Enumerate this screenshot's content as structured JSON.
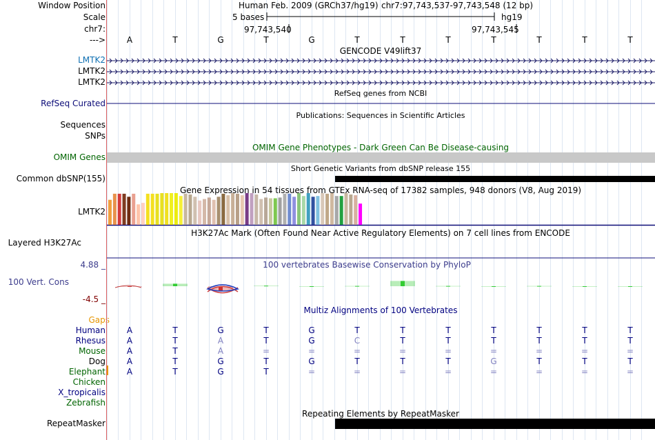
{
  "labels": {
    "window_position": "Window Position",
    "scale": "Scale",
    "chrom": "chr7:",
    "arrow": "--->",
    "gencode_1": "LMTK2",
    "gencode_2": "LMTK2",
    "gencode_3": "LMTK2",
    "refseq": "RefSeq Curated",
    "sequences": "Sequences",
    "snps": "SNPs",
    "omim": "OMIM Genes",
    "dbsnp": "Common dbSNP(155)",
    "gtex": "LMTK2",
    "h3k27ac": "Layered H3K27Ac",
    "phylop_max": "4.88 _",
    "cons": "100 Vert. Cons",
    "phylop_min": "-4.5 _",
    "gaps": "Gaps",
    "repeatmasker": "RepeatMasker"
  },
  "ruler": {
    "assembly": "Human Feb. 2009 (GRCh37/hg19)",
    "position": "chr7:97,743,537-97,743,548 (12 bp)",
    "scale_bases": "5 bases",
    "scale_db": "hg19",
    "coord_1": "97,743,540",
    "coord_2": "97,743,545"
  },
  "dna": [
    "A",
    "T",
    "G",
    "T",
    "G",
    "T",
    "T",
    "T",
    "T",
    "T",
    "T",
    "T"
  ],
  "titles": {
    "gencode": "GENCODE V49lift37",
    "refseq": "RefSeq genes from NCBI",
    "pubs": "Publications: Sequences in Scientific Articles",
    "omim": "OMIM Gene Phenotypes - Dark Green Can Be Disease-causing",
    "dbsnp": "Short Genetic Variants from dbSNP release 155",
    "gtex": "Gene Expression in 54 tissues from GTEx RNA-seq of 17382 samples, 948 donors (V8, Aug 2019)",
    "h3k27ac": "H3K27Ac Mark (Often Found Near Active Regulatory Elements) on 7 cell lines from ENCODE",
    "phylop": "100 vertebrates Basewise Conservation by PhyloP",
    "multiz": "Multiz Alignments of 100 Vertebrates",
    "repeatmasker": "Repeating Elements by RepeatMasker"
  },
  "species": [
    {
      "name": "Human",
      "color": "#000080",
      "bases": [
        "A",
        "T",
        "G",
        "T",
        "G",
        "T",
        "T",
        "T",
        "T",
        "T",
        "T",
        "T"
      ]
    },
    {
      "name": "Rhesus",
      "color": "#000080",
      "bases": [
        "A",
        "T",
        "A",
        "T",
        "G",
        "C",
        "T",
        "T",
        "T",
        "T",
        "T",
        "T"
      ]
    },
    {
      "name": "Mouse",
      "color": "#006400",
      "bases": [
        "A",
        "T",
        "A",
        "=",
        "=",
        "=",
        "=",
        "=",
        "=",
        "=",
        "=",
        "="
      ]
    },
    {
      "name": "Dog",
      "color": "#000000",
      "bases": [
        "A",
        "T",
        "G",
        "T",
        "G",
        "T",
        "T",
        "T",
        "G",
        "T",
        "T",
        "T"
      ]
    },
    {
      "name": "Elephant",
      "color": "#006400",
      "bases": [
        "A",
        "T",
        "G",
        "T",
        "=",
        "=",
        "=",
        "=",
        "=",
        "=",
        "=",
        "="
      ]
    },
    {
      "name": "Chicken",
      "color": "#006400",
      "bases": []
    },
    {
      "name": "X_tropicalis",
      "color": "#000080",
      "bases": []
    },
    {
      "name": "Zebrafish",
      "color": "#006400",
      "bases": []
    }
  ],
  "align_colors": {
    "Human": [
      "n",
      "n",
      "n",
      "n",
      "n",
      "n",
      "n",
      "n",
      "n",
      "n",
      "n",
      "n"
    ],
    "Rhesus": [
      "n",
      "n",
      "l",
      "n",
      "n",
      "l",
      "n",
      "n",
      "n",
      "n",
      "n",
      "n"
    ],
    "Mouse": [
      "n",
      "n",
      "l",
      "l",
      "l",
      "l",
      "l",
      "l",
      "l",
      "l",
      "l",
      "l"
    ],
    "Dog": [
      "n",
      "n",
      "n",
      "n",
      "n",
      "n",
      "n",
      "n",
      "l",
      "n",
      "n",
      "n"
    ],
    "Elephant": [
      "n",
      "n",
      "n",
      "n",
      "l",
      "l",
      "l",
      "l",
      "l",
      "l",
      "l",
      "l"
    ]
  },
  "colors": {
    "gencode_label": "#0e6fb2",
    "gencode_lines": "#1a1a66",
    "refseq": "#0c0c78",
    "omim_label": "#006400",
    "omim_bar": "#c8c8c8",
    "phylop_pos": "#33cc33",
    "phylop_neg": "#cc3333",
    "phylop_axis": "#3c3c8c",
    "phylop_min": "#800000",
    "gaps": "#e69500",
    "base": "#000080",
    "base_light": "#8080c0"
  },
  "gtex_values": [
    0.33,
    0.41,
    0.41,
    0.41,
    0.37,
    0.41,
    0.27,
    0.29,
    0.41,
    0.41,
    0.41,
    0.47,
    0.55,
    0.52,
    0.51,
    0.38,
    0.41,
    0.4,
    0.37,
    0.32,
    0.34,
    0.36,
    0.33,
    0.37,
    0.41,
    0.39,
    0.43,
    0.41,
    0.39,
    0.42,
    0.42,
    0.4,
    0.34,
    0.36,
    0.35,
    0.35,
    0.36,
    0.41,
    0.41,
    0.37,
    0.42,
    0.38,
    0.42,
    0.37,
    0.38,
    0.45,
    0.41,
    0.46,
    0.38,
    0.38,
    0.42,
    0.4,
    0.39,
    0.28
  ],
  "gtex_colors": [
    "#f0a040",
    "#e8924c",
    "#d43c3c",
    "#7f3a1f",
    "#6e2a10",
    "#e9a090",
    "#ffc4aa",
    "#ffd0c2",
    "#f4e020",
    "#f4e020",
    "#e8e020",
    "#e8e020",
    "#f0e020",
    "#f0f020",
    "#ecec10",
    "#f6f038",
    "#c8b8a0",
    "#b8a890",
    "#d0c0b0",
    "#e8c8c0",
    "#d4b8a8",
    "#c6a898",
    "#e0c0b0",
    "#a89070",
    "#8a6a40",
    "#d8c0a8",
    "#c8b098",
    "#b8a088",
    "#e8c8b0",
    "#783c86",
    "#c0a0c0",
    "#c8b8a8",
    "#d0c0b0",
    "#b8a898",
    "#c8c8a0",
    "#7ec850",
    "#a0a0a0",
    "#b0b0b0",
    "#6f8cd0",
    "#9090e0",
    "#8ac47c",
    "#a8d8a8",
    "#40a0c0",
    "#3050a0",
    "#80c0e0",
    "#d8c8b8",
    "#c0a888",
    "#d0b8a0",
    "#a8a8a8",
    "#20a040",
    "#c8b8a0",
    "#b8a890",
    "#d8b0a0",
    "#ff00ff"
  ],
  "phylop_values": [
    -0.2,
    0.9,
    -1.6,
    0.2,
    0.0,
    0.1,
    1.9,
    0.1,
    0.0,
    0.1,
    0.0,
    0.0
  ]
}
